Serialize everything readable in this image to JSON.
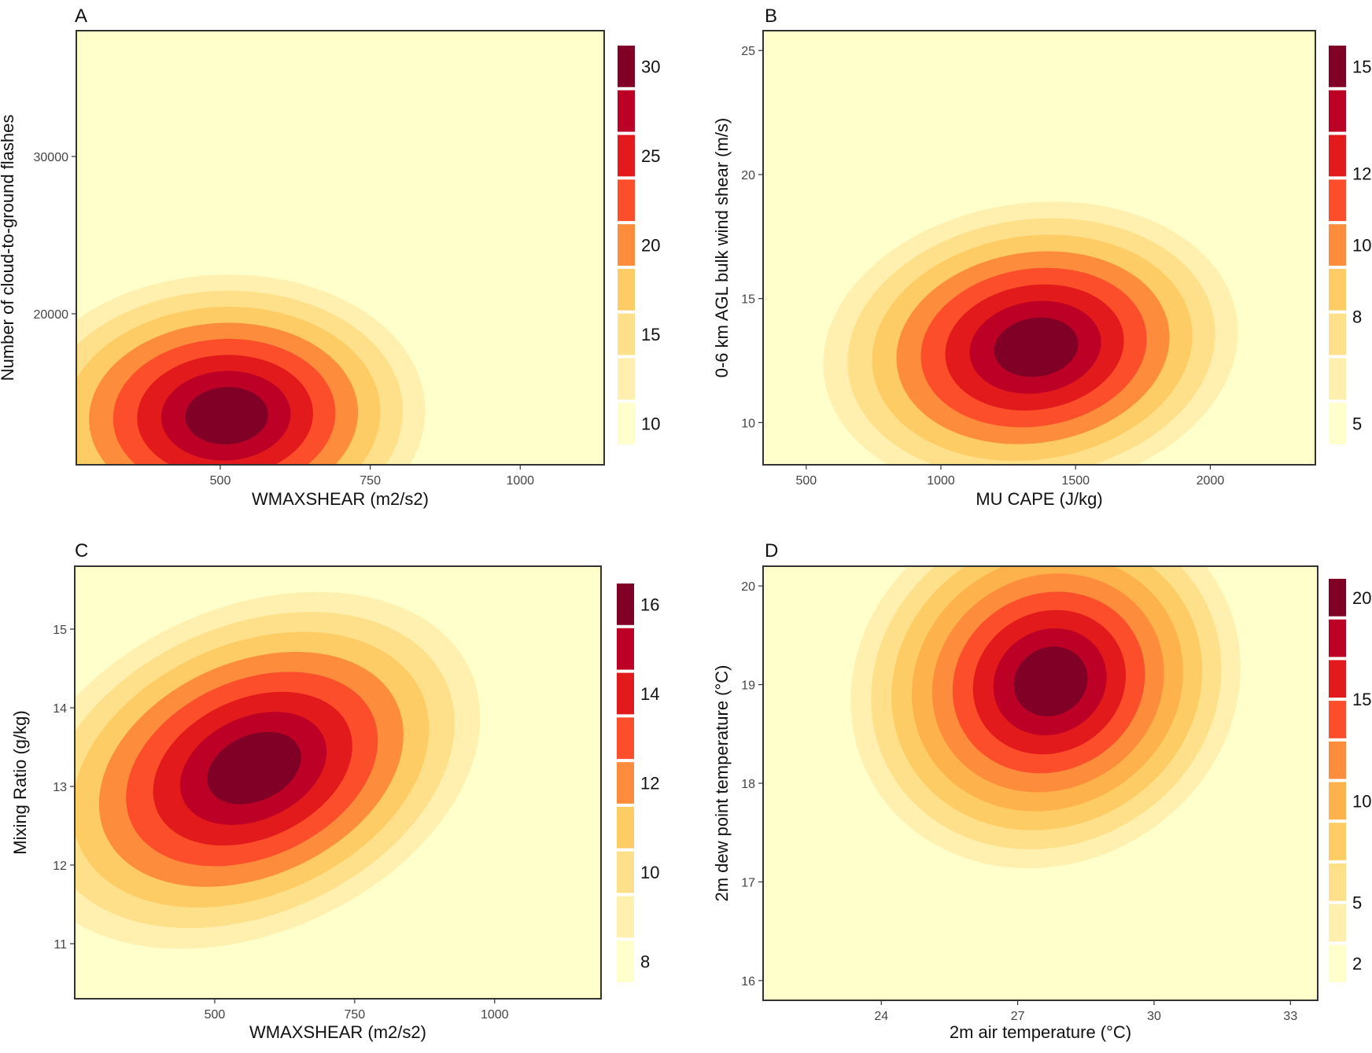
{
  "chart_data": [
    {
      "panel": "A",
      "type": "contour",
      "xlabel": "WMAXSHEAR (m2/s2)",
      "ylabel": "Number of cloud-to-ground flashes",
      "xlim": [
        260,
        1140
      ],
      "ylim": [
        10400,
        38000
      ],
      "xticks": [
        500,
        750,
        1000
      ],
      "yticks": [
        20000,
        30000
      ],
      "x_tick_labels": [
        "500",
        "750",
        "1000"
      ],
      "y_tick_labels": [
        "20000",
        "30000"
      ],
      "legend": {
        "labels": [
          "30",
          "25",
          "20",
          "15",
          "10"
        ],
        "label_values": [
          30,
          25,
          20,
          15,
          10
        ],
        "n_bins": 9
      },
      "peak": {
        "x": 500,
        "y": 13500
      },
      "spread": {
        "sx": 330,
        "sy": 10000
      },
      "skew": 0.05,
      "outer_reach": {
        "xmax": 1140,
        "ymax": 36000
      }
    },
    {
      "panel": "B",
      "type": "contour",
      "xlabel": "MU CAPE (J/kg)",
      "ylabel": "0-6 km AGL bulk wind shear (m/s)",
      "xlim": [
        340,
        2390
      ],
      "ylim": [
        8.3,
        25.8
      ],
      "xticks": [
        500,
        1000,
        1500,
        2000
      ],
      "yticks": [
        10,
        15,
        20,
        25
      ],
      "x_tick_labels": [
        "500",
        "1000",
        "1500",
        "2000"
      ],
      "y_tick_labels": [
        "10",
        "15",
        "20",
        "25"
      ],
      "legend": {
        "labels": [
          "15",
          "12",
          "10",
          "8",
          "5"
        ],
        "label_values": [
          15,
          12,
          10,
          8,
          5
        ],
        "n_bins": 9
      },
      "peak": {
        "x": 1330,
        "y": 13.0
      },
      "spread": {
        "sx": 750,
        "sy": 6.5
      },
      "skew": 0.15,
      "outer_reach": {
        "xmax": 2390,
        "ymax": 25.5
      }
    },
    {
      "panel": "C",
      "type": "contour",
      "xlabel": "WMAXSHEAR (m2/s2)",
      "ylabel": "Mixing Ratio (g/kg)",
      "xlim": [
        250,
        1190
      ],
      "ylim": [
        10.3,
        15.8
      ],
      "xticks": [
        500,
        750,
        1000
      ],
      "yticks": [
        11,
        12,
        13,
        14,
        15
      ],
      "x_tick_labels": [
        "500",
        "750",
        "1000"
      ],
      "y_tick_labels": [
        "11",
        "12",
        "13",
        "14",
        "15"
      ],
      "legend": {
        "labels": [
          "16",
          "14",
          "12",
          "10",
          "8"
        ],
        "label_values": [
          16,
          14,
          12,
          10,
          8
        ],
        "n_bins": 9
      },
      "peak": {
        "x": 560,
        "y": 13.2
      },
      "spread": {
        "sx": 420,
        "sy": 2.3
      },
      "skew": 0.45,
      "outer_reach": {
        "xmax": 1190,
        "ymax": 15.8
      }
    },
    {
      "panel": "D",
      "type": "contour",
      "xlabel": "2m air temperature (°C)",
      "ylabel": "2m dew point temperature (°C)",
      "xlim": [
        21.4,
        33.6
      ],
      "ylim": [
        15.8,
        20.2
      ],
      "xticks": [
        24,
        27,
        30,
        33
      ],
      "yticks": [
        16,
        17,
        18,
        19,
        20
      ],
      "x_tick_labels": [
        "24",
        "27",
        "30",
        "33"
      ],
      "y_tick_labels": [
        "16",
        "17",
        "18",
        "19",
        "20"
      ],
      "legend": {
        "labels": [
          "20",
          "15",
          "10",
          "5",
          "2"
        ],
        "label_values": [
          20,
          15,
          10,
          5,
          2
        ],
        "n_bins": 10
      },
      "peak": {
        "x": 27.6,
        "y": 19.0
      },
      "spread": {
        "sx": 4.2,
        "sy": 2.0
      },
      "skew": 0.55,
      "outer_reach": {
        "xmax": 33.6,
        "ymax": 20.2
      }
    }
  ],
  "colors": {
    "ramp": [
      "#ffffcc",
      "#fff0b0",
      "#ffe08a",
      "#fecc65",
      "#feb24c",
      "#fd8d3c",
      "#fc4e2a",
      "#e31a1c",
      "#bd0026",
      "#800026"
    ],
    "axis": "#333333",
    "tick_label": "#444444"
  }
}
